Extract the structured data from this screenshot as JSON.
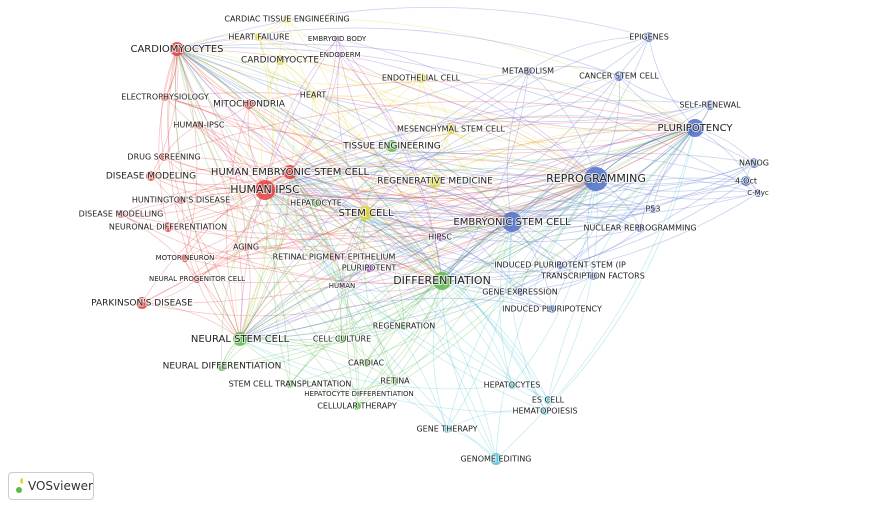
{
  "clusters": [
    {
      "color": "#e5403c",
      "nodes": [
        "CARDIOMYOCYTES",
        "ELECTROPHYSIOLOGY",
        "MITOCHONDRIA",
        "HUMAN-IPSC",
        "DRUG SCREENING",
        "DISEASE MODELING",
        "HUMAN EMBRYONIC STEM CELL",
        "HUMAN IPSC",
        "HUNTINGTON'S DISEASE",
        "DISEASE MODELLING",
        "NEURONAL DIFFERENTIATION",
        "AGING",
        "RETINAL PIGMENT EPITHELIUM",
        "MOTOR NEURON",
        "NEURAL PROGENITOR CELL",
        "PARKINSON'S DISEASE"
      ]
    },
    {
      "color": "#e3d42c",
      "nodes": [
        "CARDIAC TISSUE ENGINEERING",
        "HEART FAILURE",
        "CARDIOMYOCYTE",
        "HEART",
        "ENDOTHELIAL CELL",
        "MESENCHYMAL STEM CELL",
        "REGENERATIVE MEDICINE",
        "STEM CELL"
      ]
    },
    {
      "color": "#a448c2",
      "nodes": [
        "EMBRYOID BODY",
        "ENDODERM",
        "HIPSC",
        "PLURIPOTENT",
        "HUMAN"
      ]
    },
    {
      "color": "#5db94a",
      "nodes": [
        "TISSUE ENGINEERING",
        "HEPATOCYTE",
        "DIFFERENTIATION",
        "NEURAL STEM CELL",
        "NEURAL DIFFERENTIATION",
        "CELL CULTURE",
        "REGENERATION",
        "CARDIAC",
        "STEM CELL TRANSPLANTATION",
        "RETINA",
        "HEPATOCYTE DIFFERENTIATION",
        "CELLULAR THERAPY"
      ]
    },
    {
      "color": "#4e6ec8",
      "nodes": [
        "EPIGENES",
        "METABOLISM",
        "CANCER STEM CELL",
        "SELF-RENEWAL",
        "PLURIPOTENCY",
        "REPROGRAMMING",
        "NANOG",
        "4-Oct",
        "C-Myc",
        "P53",
        "EMBRYONIC STEM CELL",
        "NUCLEAR REPROGRAMMING",
        "INDUCED PLURIPOTENT STEM (IP",
        "TRANSCRIPTION FACTORS",
        "GENE EXPRESSION",
        "INDUCED PLURIPOTENCY"
      ]
    },
    {
      "color": "#46c0d5",
      "nodes": [
        "HEPATOCYTES",
        "ES CELL",
        "HEMATOPOIESIS",
        "GENE THERAPY",
        "GENOME EDITING"
      ]
    }
  ],
  "logo": "VOSviewer"
}
